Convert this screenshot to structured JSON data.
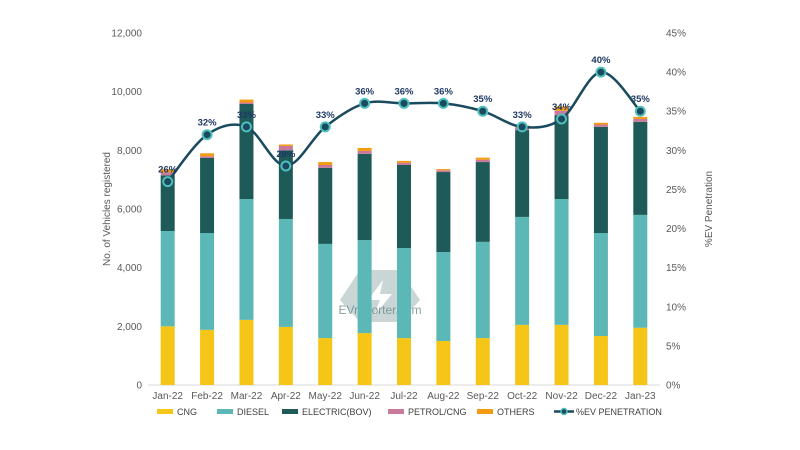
{
  "chart_data": {
    "type": "bar",
    "stacked": true,
    "categories": [
      "Jan-22",
      "Feb-22",
      "Mar-22",
      "Apr-22",
      "May-22",
      "Jun-22",
      "Jul-22",
      "Aug-22",
      "Sep-22",
      "Oct-22",
      "Nov-22",
      "Dec-22",
      "Jan-23"
    ],
    "series": [
      {
        "name": "CNG",
        "color": "#f5c518",
        "values": [
          2000,
          1880,
          2220,
          1980,
          1600,
          1770,
          1600,
          1500,
          1600,
          2050,
          2050,
          1670,
          1950
        ]
      },
      {
        "name": "DIESEL",
        "color": "#5bb8b6",
        "values": [
          3250,
          3300,
          4120,
          3680,
          3210,
          3170,
          3070,
          3030,
          3280,
          3680,
          4290,
          3510,
          3850
        ]
      },
      {
        "name": "ELECTRIC(BOV)",
        "color": "#1e5a58",
        "values": [
          1900,
          2560,
          3240,
          2340,
          2590,
          2940,
          2830,
          2730,
          2720,
          2960,
          2860,
          3620,
          3170
        ]
      },
      {
        "name": "PETROL/CNG",
        "color": "#c97a9a",
        "values": [
          100,
          60,
          50,
          150,
          100,
          100,
          80,
          60,
          80,
          100,
          150,
          80,
          100
        ]
      },
      {
        "name": "OTHERS",
        "color": "#f39c12",
        "values": [
          100,
          100,
          100,
          50,
          100,
          100,
          60,
          40,
          70,
          60,
          150,
          60,
          70
        ]
      }
    ],
    "line_series": {
      "name": "%EV PENETRATION",
      "color": "#1a4a5e",
      "marker_color": "#4fbfbd",
      "axis": "right",
      "values": [
        26,
        32,
        33,
        28,
        33,
        36,
        36,
        36,
        35,
        33,
        34,
        40,
        35
      ],
      "labels": [
        "26%",
        "32%",
        "33%",
        "28%",
        "33%",
        "36%",
        "36%",
        "36%",
        "35%",
        "33%",
        "34%",
        "40%",
        "35%"
      ]
    },
    "ylabel": "No. of Vehicles  registered",
    "y2label": "%EV Penetration",
    "ylim": [
      0,
      12000
    ],
    "y2lim": [
      0,
      45
    ],
    "yticks": [
      "0",
      "2,000",
      "4,000",
      "6,000",
      "8,000",
      "10,000",
      "12,000"
    ],
    "y2ticks": [
      "0%",
      "5%",
      "10%",
      "15%",
      "20%",
      "25%",
      "30%",
      "35%",
      "40%",
      "45%"
    ],
    "legend_position": "bottom",
    "grid": false
  },
  "watermark": "EVreporter.com"
}
